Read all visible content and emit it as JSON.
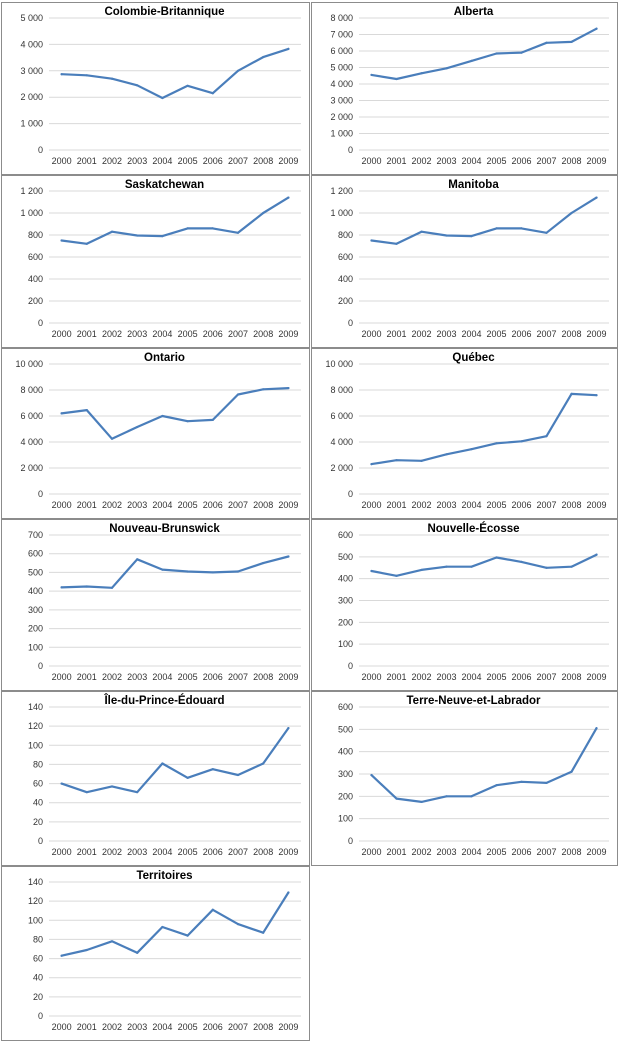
{
  "chart_data": [
    {
      "type": "line",
      "title": "Colombie-Britannique",
      "categories": [
        "2000",
        "2001",
        "2002",
        "2003",
        "2004",
        "2005",
        "2006",
        "2007",
        "2008",
        "2009"
      ],
      "values": [
        2870,
        2830,
        2700,
        2450,
        1970,
        2430,
        2150,
        3000,
        3520,
        3830
      ],
      "ylim": [
        0,
        5000
      ],
      "yticks": [
        0,
        1000,
        2000,
        3000,
        4000,
        5000
      ],
      "ytick_labels": [
        "0",
        "1 000",
        "2 000",
        "3 000",
        "4 000",
        "5 000"
      ],
      "xlabel": "",
      "ylabel": "",
      "grid": true
    },
    {
      "type": "line",
      "title": "Alberta",
      "categories": [
        "2000",
        "2001",
        "2002",
        "2003",
        "2004",
        "2005",
        "2006",
        "2007",
        "2008",
        "2009"
      ],
      "values": [
        4550,
        4300,
        4650,
        4950,
        5400,
        5850,
        5900,
        6500,
        6550,
        7350
      ],
      "ylim": [
        0,
        8000
      ],
      "yticks": [
        0,
        1000,
        2000,
        3000,
        4000,
        5000,
        6000,
        7000,
        8000
      ],
      "ytick_labels": [
        "0",
        "1 000",
        "2 000",
        "3 000",
        "4 000",
        "5 000",
        "6 000",
        "7 000",
        "8 000"
      ],
      "xlabel": "",
      "ylabel": "",
      "grid": true
    },
    {
      "type": "line",
      "title": "Saskatchewan",
      "categories": [
        "2000",
        "2001",
        "2002",
        "2003",
        "2004",
        "2005",
        "2006",
        "2007",
        "2008",
        "2009"
      ],
      "values": [
        750,
        720,
        830,
        795,
        790,
        860,
        860,
        820,
        1000,
        1140
      ],
      "ylim": [
        0,
        1200
      ],
      "yticks": [
        0,
        200,
        400,
        600,
        800,
        1000,
        1200
      ],
      "ytick_labels": [
        "0",
        "200",
        "400",
        "600",
        "800",
        "1 000",
        "1 200"
      ],
      "xlabel": "",
      "ylabel": "",
      "grid": true
    },
    {
      "type": "line",
      "title": "Manitoba",
      "categories": [
        "2000",
        "2001",
        "2002",
        "2003",
        "2004",
        "2005",
        "2006",
        "2007",
        "2008",
        "2009"
      ],
      "values": [
        750,
        720,
        830,
        795,
        790,
        860,
        860,
        820,
        1000,
        1140
      ],
      "ylim": [
        0,
        1200
      ],
      "yticks": [
        0,
        200,
        400,
        600,
        800,
        1000,
        1200
      ],
      "ytick_labels": [
        "0",
        "200",
        "400",
        "600",
        "800",
        "1 000",
        "1 200"
      ],
      "xlabel": "",
      "ylabel": "",
      "grid": true
    },
    {
      "type": "line",
      "title": "Ontario",
      "categories": [
        "2000",
        "2001",
        "2002",
        "2003",
        "2004",
        "2005",
        "2006",
        "2007",
        "2008",
        "2009"
      ],
      "values": [
        6200,
        6450,
        4250,
        5150,
        6000,
        5600,
        5700,
        7650,
        8050,
        8150
      ],
      "ylim": [
        0,
        10000
      ],
      "yticks": [
        0,
        2000,
        4000,
        6000,
        8000,
        10000
      ],
      "ytick_labels": [
        "0",
        "2 000",
        "4 000",
        "6 000",
        "8 000",
        "10 000"
      ],
      "xlabel": "",
      "ylabel": "",
      "grid": true
    },
    {
      "type": "line",
      "title": "Québec",
      "categories": [
        "2000",
        "2001",
        "2002",
        "2003",
        "2004",
        "2005",
        "2006",
        "2007",
        "2008",
        "2009"
      ],
      "values": [
        2300,
        2600,
        2550,
        3050,
        3450,
        3900,
        4050,
        4450,
        7700,
        7600
      ],
      "ylim": [
        0,
        10000
      ],
      "yticks": [
        0,
        2000,
        4000,
        6000,
        8000,
        10000
      ],
      "ytick_labels": [
        "0",
        "2 000",
        "4 000",
        "6 000",
        "8 000",
        "10 000"
      ],
      "xlabel": "",
      "ylabel": "",
      "grid": true
    },
    {
      "type": "line",
      "title": "Nouveau-Brunswick",
      "categories": [
        "2000",
        "2001",
        "2002",
        "2003",
        "2004",
        "2005",
        "2006",
        "2007",
        "2008",
        "2009"
      ],
      "values": [
        420,
        425,
        418,
        570,
        515,
        505,
        500,
        505,
        550,
        585
      ],
      "ylim": [
        0,
        700
      ],
      "yticks": [
        0,
        100,
        200,
        300,
        400,
        500,
        600,
        700
      ],
      "ytick_labels": [
        "0",
        "100",
        "200",
        "300",
        "400",
        "500",
        "600",
        "700"
      ],
      "xlabel": "",
      "ylabel": "",
      "grid": true
    },
    {
      "type": "line",
      "title": "Nouvelle-Écosse",
      "categories": [
        "2000",
        "2001",
        "2002",
        "2003",
        "2004",
        "2005",
        "2006",
        "2007",
        "2008",
        "2009"
      ],
      "values": [
        435,
        413,
        440,
        455,
        455,
        497,
        477,
        450,
        455,
        510
      ],
      "ylim": [
        0,
        600
      ],
      "yticks": [
        0,
        100,
        200,
        300,
        400,
        500,
        600
      ],
      "ytick_labels": [
        "0",
        "100",
        "200",
        "300",
        "400",
        "500",
        "600"
      ],
      "xlabel": "",
      "ylabel": "",
      "grid": true
    },
    {
      "type": "line",
      "title": "Île-du-Prince-Édouard",
      "categories": [
        "2000",
        "2001",
        "2002",
        "2003",
        "2004",
        "2005",
        "2006",
        "2007",
        "2008",
        "2009"
      ],
      "values": [
        60,
        51,
        57,
        51,
        81,
        66,
        75,
        69,
        81,
        118
      ],
      "ylim": [
        0,
        140
      ],
      "yticks": [
        0,
        20,
        40,
        60,
        80,
        100,
        120,
        140
      ],
      "ytick_labels": [
        "0",
        "20",
        "40",
        "60",
        "80",
        "100",
        "120",
        "140"
      ],
      "xlabel": "",
      "ylabel": "",
      "grid": true
    },
    {
      "type": "line",
      "title": "Terre-Neuve-et-Labrador",
      "categories": [
        "2000",
        "2001",
        "2002",
        "2003",
        "2004",
        "2005",
        "2006",
        "2007",
        "2008",
        "2009"
      ],
      "values": [
        295,
        190,
        175,
        200,
        200,
        250,
        265,
        260,
        310,
        505
      ],
      "ylim": [
        0,
        600
      ],
      "yticks": [
        0,
        100,
        200,
        300,
        400,
        500,
        600
      ],
      "ytick_labels": [
        "0",
        "100",
        "200",
        "300",
        "400",
        "500",
        "600"
      ],
      "xlabel": "",
      "ylabel": "",
      "grid": true
    },
    {
      "type": "line",
      "title": "Territoires",
      "categories": [
        "2000",
        "2001",
        "2002",
        "2003",
        "2004",
        "2005",
        "2006",
        "2007",
        "2008",
        "2009"
      ],
      "values": [
        63,
        69,
        78,
        66,
        93,
        84,
        111,
        96,
        87,
        129
      ],
      "ylim": [
        0,
        140
      ],
      "yticks": [
        0,
        20,
        40,
        60,
        80,
        100,
        120,
        140
      ],
      "ytick_labels": [
        "0",
        "20",
        "40",
        "60",
        "80",
        "100",
        "120",
        "140"
      ],
      "xlabel": "",
      "ylabel": "",
      "grid": true
    }
  ],
  "style": {
    "line_color": "#4a7ebb",
    "grid_color": "#d9d9d9",
    "border_color": "#8c8c8c"
  }
}
